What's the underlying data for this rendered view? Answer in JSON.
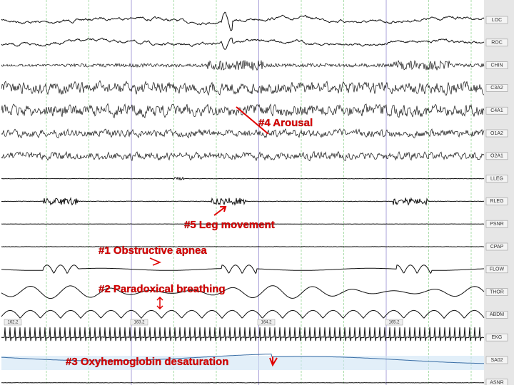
{
  "channels": [
    "LOC",
    "ROC",
    "CHIN",
    "C3A2",
    "C4A1",
    "O1A2",
    "O2A1",
    "LLEG",
    "RLEG",
    "PSNR",
    "CPAP",
    "FLOW",
    "THOR",
    "ABDM",
    "EKG",
    "SA02",
    "ASNR"
  ],
  "time_markers": [
    "162.2",
    "163.2",
    "164.2",
    "165.2"
  ],
  "annotations": {
    "arousal": "#4 Arousal",
    "leg_movement": "#5 Leg movement",
    "obstructive_apnea": "#1 Obstructive apnea",
    "paradoxical_breathing": "#2 Paradoxical breathing",
    "desaturation": "#3 Oxyhemoglobin desaturation"
  }
}
